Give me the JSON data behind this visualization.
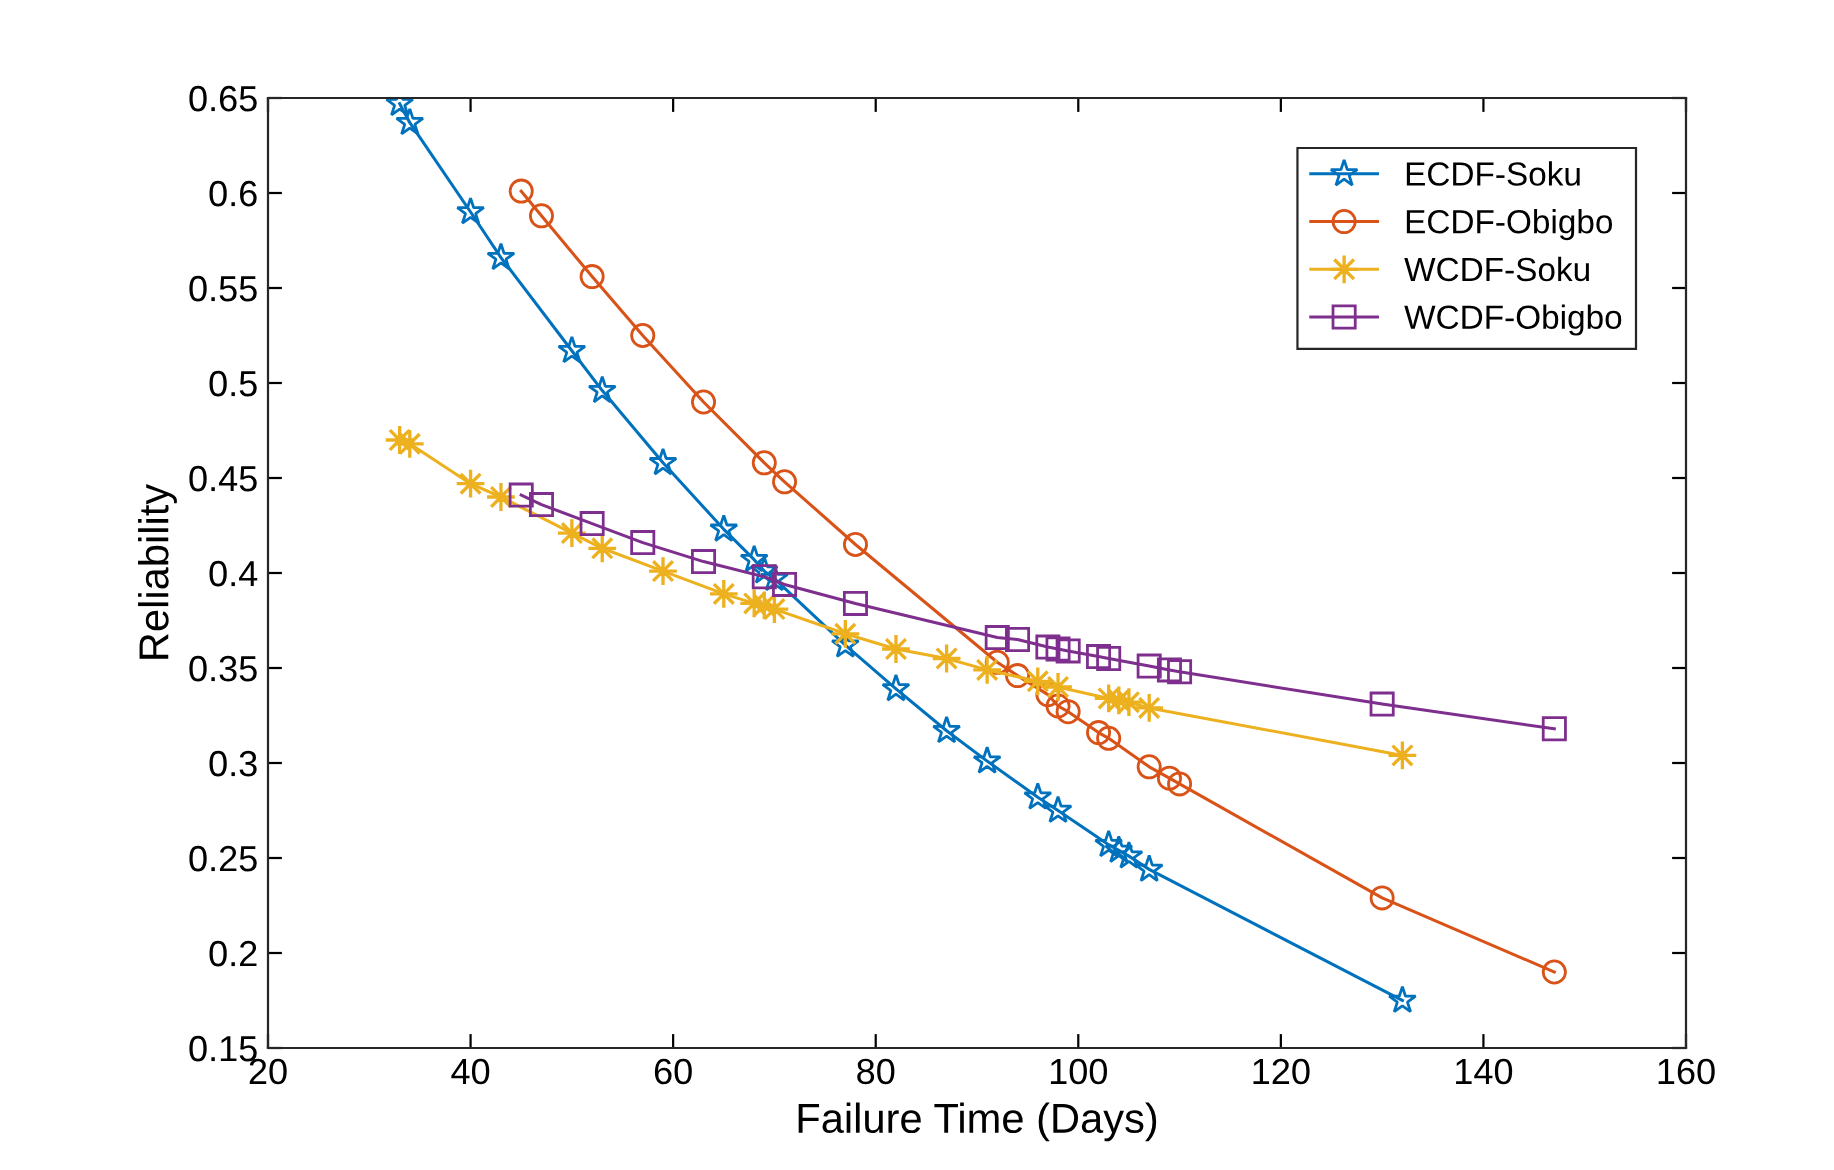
{
  "chart_data": {
    "type": "line",
    "xlabel": "Failure Time (Days)",
    "ylabel": "Reliability",
    "xlim": [
      20,
      160
    ],
    "ylim": [
      0.15,
      0.65
    ],
    "xticks": [
      20,
      40,
      60,
      80,
      100,
      120,
      140,
      160
    ],
    "yticks": [
      0.15,
      0.2,
      0.25,
      0.3,
      0.35,
      0.4,
      0.45,
      0.5,
      0.55,
      0.6,
      0.65
    ],
    "grid": false,
    "legend": "top right",
    "line_style": "solid",
    "series": [
      {
        "name": "ECDF-Soku",
        "color": "#0072bd",
        "marker": "star",
        "x": [
          33,
          34,
          40,
          43,
          50,
          53,
          59,
          65,
          68,
          69,
          70,
          77,
          82,
          87,
          91,
          96,
          98,
          103,
          104,
          105,
          107,
          132
        ],
        "values": [
          0.647,
          0.637,
          0.59,
          0.566,
          0.517,
          0.496,
          0.458,
          0.423,
          0.407,
          0.401,
          0.397,
          0.362,
          0.339,
          0.317,
          0.301,
          0.282,
          0.275,
          0.257,
          0.254,
          0.251,
          0.244,
          0.175
        ]
      },
      {
        "name": "ECDF-Obigbo",
        "color": "#d95319",
        "marker": "circle",
        "x": [
          45,
          47,
          52,
          57,
          63,
          69,
          71,
          78,
          92,
          94,
          97,
          98,
          99,
          102,
          103,
          107,
          109,
          110,
          130,
          147
        ],
        "values": [
          0.601,
          0.588,
          0.556,
          0.525,
          0.49,
          0.458,
          0.448,
          0.415,
          0.353,
          0.346,
          0.336,
          0.33,
          0.327,
          0.316,
          0.313,
          0.298,
          0.292,
          0.289,
          0.229,
          0.19
        ]
      },
      {
        "name": "WCDF-Soku",
        "color": "#edb120",
        "marker": "cross",
        "x": [
          33,
          34,
          40,
          43,
          50,
          53,
          59,
          65,
          68,
          69,
          70,
          77,
          82,
          87,
          91,
          96,
          98,
          103,
          104,
          105,
          107,
          132
        ],
        "values": [
          0.47,
          0.468,
          0.447,
          0.44,
          0.421,
          0.413,
          0.401,
          0.389,
          0.384,
          0.383,
          0.381,
          0.368,
          0.36,
          0.355,
          0.349,
          0.343,
          0.34,
          0.334,
          0.333,
          0.332,
          0.329,
          0.304
        ]
      },
      {
        "name": "WCDF-Obigbo",
        "color": "#7e2f8e",
        "marker": "square",
        "x": [
          45,
          47,
          52,
          57,
          63,
          69,
          71,
          78,
          92,
          94,
          97,
          98,
          99,
          102,
          103,
          107,
          109,
          110,
          130,
          147
        ],
        "values": [
          0.441,
          0.436,
          0.426,
          0.416,
          0.406,
          0.398,
          0.394,
          0.384,
          0.366,
          0.365,
          0.361,
          0.36,
          0.359,
          0.356,
          0.355,
          0.351,
          0.349,
          0.348,
          0.331,
          0.318
        ]
      }
    ]
  }
}
